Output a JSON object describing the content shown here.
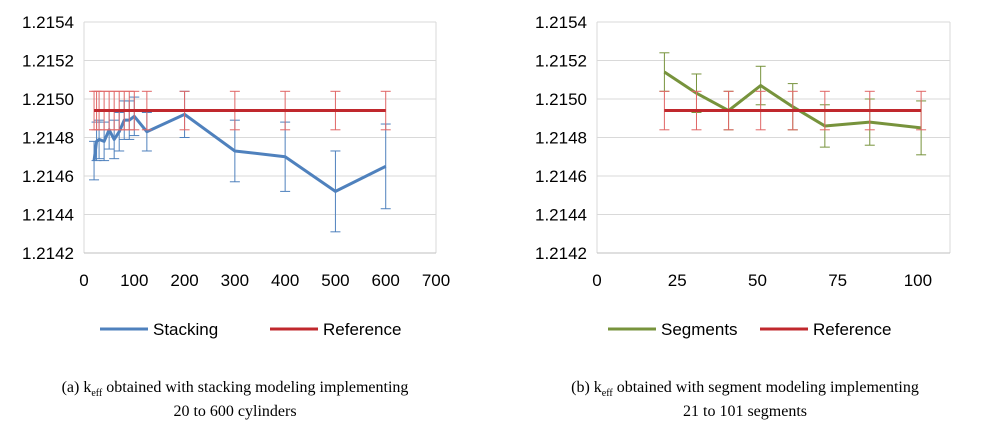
{
  "chart_data": [
    {
      "type": "line",
      "title": "",
      "xlabel": "",
      "ylabel": "",
      "xlim": [
        0,
        700
      ],
      "ylim": [
        1.2142,
        1.2154
      ],
      "x_ticks": [
        "0",
        "100",
        "200",
        "300",
        "400",
        "500",
        "600",
        "700"
      ],
      "y_ticks": [
        "1.2142",
        "1.2144",
        "1.2146",
        "1.2148",
        "1.2150",
        "1.2152",
        "1.2154"
      ],
      "grid": "horizontal",
      "legend_position": "bottom",
      "series": [
        {
          "name": "Stacking",
          "color": "#4f81bd",
          "x": [
            20,
            25,
            30,
            40,
            50,
            60,
            70,
            80,
            90,
            100,
            125,
            200,
            300,
            400,
            500,
            600
          ],
          "y": [
            1.21468,
            1.21478,
            1.21479,
            1.21478,
            1.21484,
            1.21479,
            1.21483,
            1.21489,
            1.21489,
            1.21491,
            1.21483,
            1.21492,
            1.21473,
            1.2147,
            1.21452,
            1.21465
          ],
          "error": [
            0.0001,
            0.0001,
            0.0001,
            0.0001,
            0.0001,
            0.0001,
            0.0001,
            0.0001,
            0.0001,
            0.0001,
            0.0001,
            0.00012,
            0.00016,
            0.00018,
            0.00021,
            0.00022
          ]
        },
        {
          "name": "Reference",
          "color": "#c0282d",
          "x": [
            20,
            25,
            30,
            40,
            50,
            60,
            70,
            80,
            90,
            100,
            125,
            200,
            300,
            400,
            500,
            600
          ],
          "y": [
            1.21494,
            1.21494,
            1.21494,
            1.21494,
            1.21494,
            1.21494,
            1.21494,
            1.21494,
            1.21494,
            1.21494,
            1.21494,
            1.21494,
            1.21494,
            1.21494,
            1.21494,
            1.21494
          ],
          "error": [
            0.0001,
            0.0001,
            0.0001,
            0.0001,
            0.0001,
            0.0001,
            0.0001,
            0.0001,
            0.0001,
            0.0001,
            0.0001,
            0.0001,
            0.0001,
            0.0001,
            0.0001,
            0.0001
          ]
        }
      ]
    },
    {
      "type": "line",
      "title": "",
      "xlabel": "",
      "ylabel": "",
      "xlim": [
        0,
        110
      ],
      "ylim": [
        1.2142,
        1.2154
      ],
      "x_ticks": [
        "0",
        "25",
        "50",
        "75",
        "100"
      ],
      "y_ticks": [
        "1.2142",
        "1.2144",
        "1.2146",
        "1.2148",
        "1.2150",
        "1.2152",
        "1.2154"
      ],
      "grid": "horizontal",
      "legend_position": "bottom",
      "series": [
        {
          "name": "Segments",
          "color": "#77933c",
          "x": [
            21,
            31,
            41,
            51,
            61,
            71,
            85,
            101
          ],
          "y": [
            1.21514,
            1.21503,
            1.21494,
            1.21507,
            1.21496,
            1.21486,
            1.21488,
            1.21485
          ],
          "error": [
            0.0001,
            0.0001,
            0.0001,
            0.0001,
            0.00012,
            0.00011,
            0.00012,
            0.00014
          ]
        },
        {
          "name": "Reference",
          "color": "#c0282d",
          "x": [
            21,
            31,
            41,
            51,
            61,
            71,
            85,
            101
          ],
          "y": [
            1.21494,
            1.21494,
            1.21494,
            1.21494,
            1.21494,
            1.21494,
            1.21494,
            1.21494
          ],
          "error": [
            0.0001,
            0.0001,
            0.0001,
            0.0001,
            0.0001,
            0.0001,
            0.0001,
            0.0001
          ]
        }
      ]
    }
  ],
  "captions": {
    "a": {
      "prefix": "(a) k",
      "sub": "eff",
      "rest": " obtained with stacking modeling implementing",
      "line2": "20 to 600  cylinders"
    },
    "b": {
      "prefix": "(b) k",
      "sub": "eff",
      "rest": " obtained with segment modeling implementing",
      "line2": "21 to 101 segments"
    }
  }
}
